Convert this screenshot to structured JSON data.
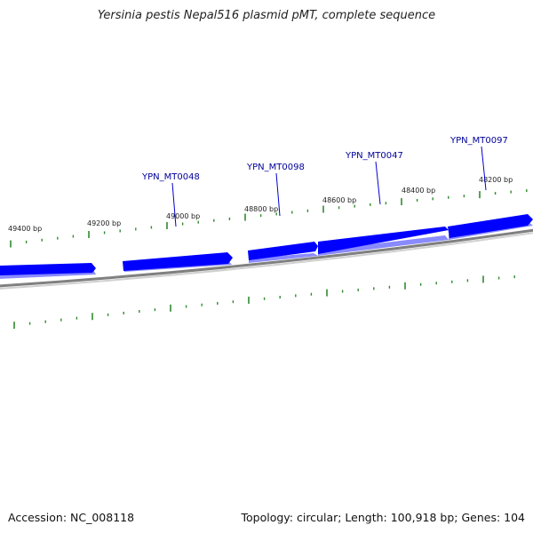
{
  "title": "Yersinia pestis Nepal516 plasmid pMT, complete sequence",
  "footer": {
    "accession": "Accession: NC_008118",
    "summary": "Topology: circular; Length: 100,918 bp; Genes: 104"
  },
  "colors": {
    "gene_fill": "#0000ff",
    "gene_shadow": "#8a8aff",
    "backbone": "#808080",
    "tick": "#2e8b2e",
    "label_text": "#000099",
    "leader": "#0000cc"
  },
  "position_labels": [
    "49400 bp",
    "49200 bp",
    "49000 bp",
    "48800 bp",
    "48600 bp",
    "48400 bp",
    "48200 bp"
  ],
  "gene_labels": [
    "YPN_MT0048",
    "YPN_MT0098",
    "YPN_MT0047",
    "YPN_MT0097"
  ]
}
